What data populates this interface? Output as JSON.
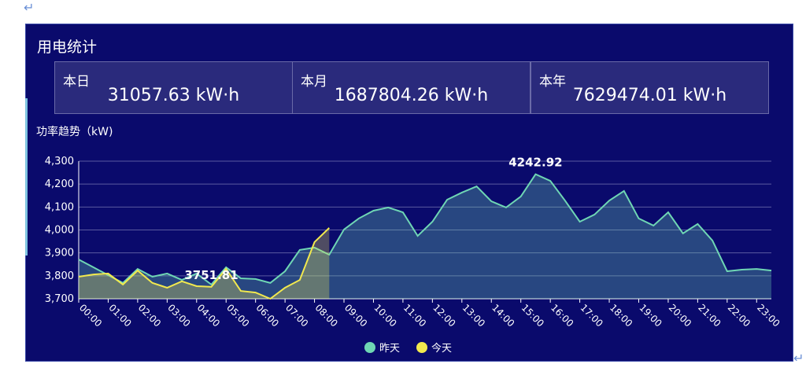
{
  "page_marks": [
    "↵",
    "↵"
  ],
  "panel": {
    "title": "用电统计",
    "stats": [
      {
        "label": "本日",
        "value": "31057.63 kW·h"
      },
      {
        "label": "本月",
        "value": "1687804.26 kW·h"
      },
      {
        "label": "本年",
        "value": "7629474.01 kW·h"
      }
    ]
  },
  "chart_data": {
    "type": "line",
    "y_axis_label": "功率趋势（kW)",
    "categories": [
      "00:00",
      null,
      "01:00",
      null,
      "02:00",
      null,
      "03:00",
      null,
      "04:00",
      null,
      "05:00",
      null,
      "06:00",
      null,
      "07:00",
      null,
      "08:00",
      null,
      "09:00",
      null,
      "10:00",
      null,
      "11:00",
      null,
      "12:00",
      null,
      "13:00",
      null,
      "14:00",
      null,
      "15:00",
      null,
      "16:00",
      null,
      "17:00",
      null,
      "18:00",
      null,
      "19:00",
      null,
      "20:00",
      null,
      "21:00",
      null,
      "22:00",
      null,
      "23:00",
      null
    ],
    "ylim": [
      3700,
      4300
    ],
    "yticks": [
      {
        "value": 3700,
        "label": "3,700"
      },
      {
        "value": 3800,
        "label": "3,800"
      },
      {
        "value": 3900,
        "label": "3,900"
      },
      {
        "value": 4000,
        "label": "4,000"
      },
      {
        "value": 4100,
        "label": "4,100"
      },
      {
        "value": 4200,
        "label": "4,200"
      },
      {
        "value": 4300,
        "label": "4,300"
      }
    ],
    "grid": true,
    "series": [
      {
        "name": "昨天",
        "color": "#6fd6b4",
        "values": [
          3871,
          3837,
          3803,
          3769,
          3830,
          3796,
          3810,
          3782,
          3810,
          3762,
          3837,
          3789,
          3786,
          3769,
          3820,
          3913,
          3923,
          3892,
          4002,
          4050,
          4084,
          4098,
          4077,
          3974,
          4036,
          4132,
          4163,
          4190,
          4125,
          4098,
          4146,
          4242.92,
          4214,
          4128,
          4036,
          4067,
          4128,
          4170,
          4050,
          4019,
          4077,
          3985,
          4026,
          3954,
          3820,
          3827,
          3830,
          3823
        ],
        "value_labels": [
          null,
          null,
          null,
          null,
          null,
          null,
          null,
          null,
          null,
          null,
          null,
          null,
          null,
          null,
          null,
          null,
          null,
          null,
          null,
          null,
          null,
          null,
          null,
          null,
          null,
          null,
          null,
          null,
          null,
          null,
          null,
          "4242.92",
          null,
          null,
          null,
          null,
          null,
          null,
          null,
          null,
          null,
          null,
          null,
          null,
          null,
          null,
          null,
          null
        ]
      },
      {
        "name": "今天",
        "color": "#f2e94e",
        "values": [
          3796,
          3806,
          3810,
          3762,
          3823,
          3769,
          3748,
          3776,
          3755,
          3751.81,
          3830,
          3734,
          3727,
          3700,
          3748,
          3782,
          3947,
          4009,
          null,
          null,
          null,
          null,
          null,
          null,
          null,
          null,
          null,
          null,
          null,
          null,
          null,
          null,
          null,
          null,
          null,
          null,
          null,
          null,
          null,
          null,
          null,
          null,
          null,
          null,
          null,
          null,
          null,
          null
        ],
        "value_labels": [
          null,
          null,
          null,
          null,
          null,
          null,
          null,
          null,
          null,
          "3751.81",
          null,
          null,
          null,
          null,
          null,
          null,
          null,
          null,
          null,
          null,
          null,
          null,
          null,
          null,
          null,
          null,
          null,
          null,
          null,
          null,
          null,
          null,
          null,
          null,
          null,
          null,
          null,
          null,
          null,
          null,
          null,
          null,
          null,
          null,
          null,
          null,
          null,
          null
        ]
      }
    ]
  }
}
